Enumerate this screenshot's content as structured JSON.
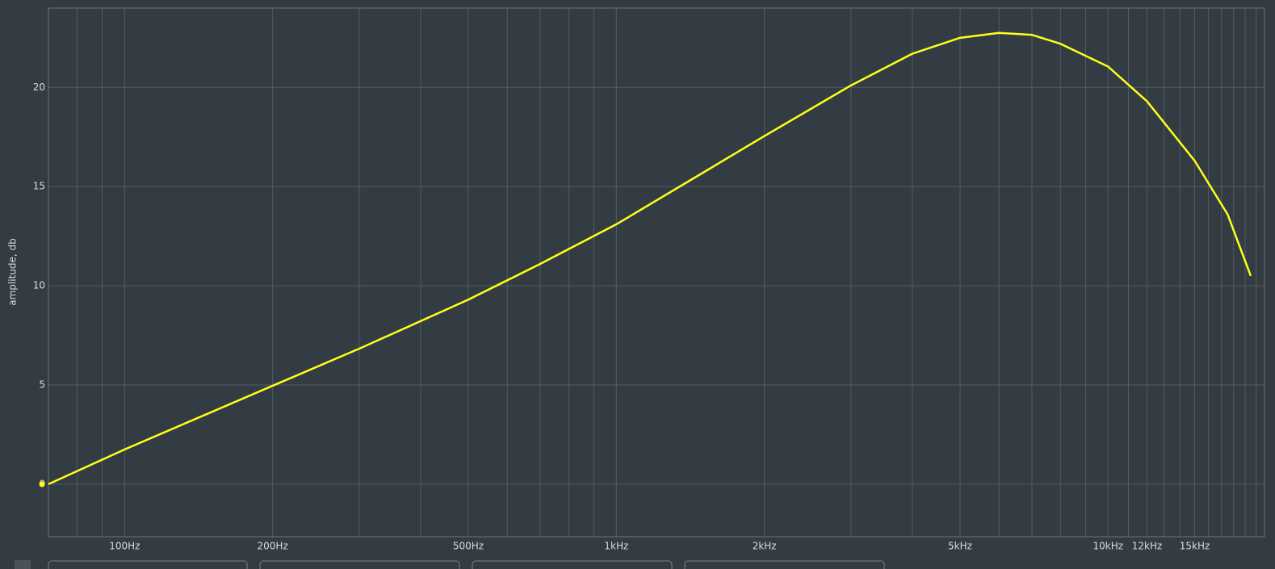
{
  "chart_data": {
    "type": "line",
    "y_label": "amplitude, db",
    "log_x": true,
    "grid": true,
    "xlim": [
      70,
      20800
    ],
    "ylim": [
      -2.65,
      24
    ],
    "xticks": [
      {
        "value": 100,
        "label": "100Hz"
      },
      {
        "value": 200,
        "label": "200Hz"
      },
      {
        "value": 500,
        "label": "500Hz"
      },
      {
        "value": 1000,
        "label": "1kHz"
      },
      {
        "value": 2000,
        "label": "2kHz"
      },
      {
        "value": 5000,
        "label": "5kHz"
      },
      {
        "value": 10000,
        "label": "10kHz"
      },
      {
        "value": 12000,
        "label": "12kHz"
      },
      {
        "value": 15000,
        "label": "15kHz"
      }
    ],
    "xgrid_minor": [
      80,
      90,
      300,
      400,
      600,
      700,
      800,
      900,
      3000,
      4000,
      6000,
      7000,
      8000,
      9000,
      11000,
      13000,
      14000,
      16000,
      17000,
      18000,
      19000,
      20000
    ],
    "yticks": [
      0,
      5,
      10,
      15,
      20
    ],
    "x": [
      70,
      100,
      200,
      300,
      500,
      700,
      1000,
      1500,
      2000,
      3000,
      4000,
      5000,
      6000,
      7000,
      8000,
      10000,
      12000,
      15000,
      17500,
      19500
    ],
    "series": [
      {
        "color": "#ffff1a",
        "values": [
          0,
          1.75,
          4.96,
          6.83,
          9.3,
          11.1,
          13.1,
          15.7,
          17.55,
          20.1,
          21.7,
          22.5,
          22.75,
          22.65,
          22.2,
          21.05,
          19.3,
          16.3,
          13.6,
          10.5
        ]
      }
    ]
  }
}
